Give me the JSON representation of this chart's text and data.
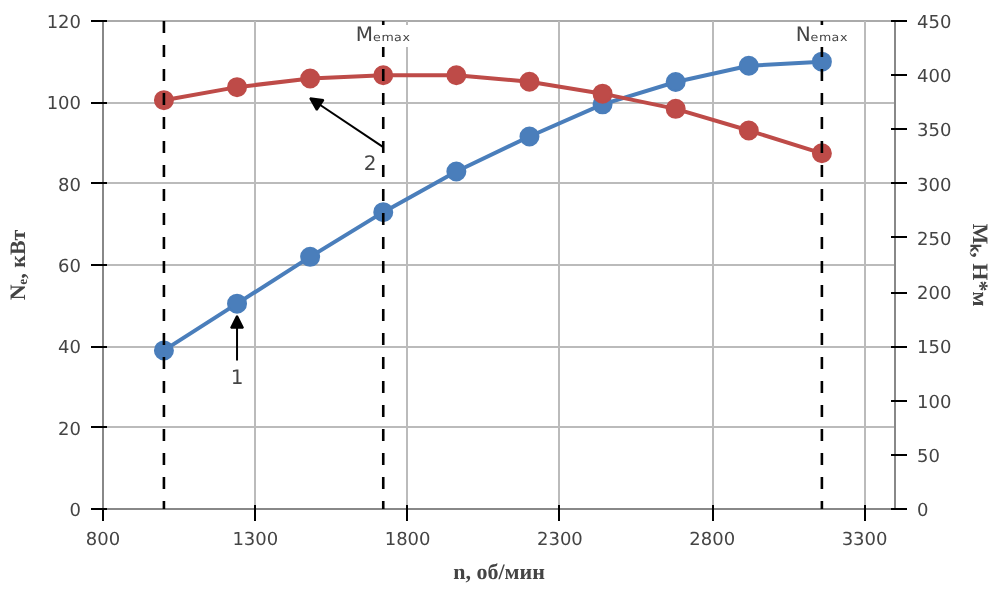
{
  "chart_data": {
    "type": "line",
    "xlabel": "n, об/мин",
    "ylabel": "Nₑ, кВт",
    "y2label": "Mₖ, Н*м",
    "x": [
      1000,
      1240,
      1480,
      1720,
      1960,
      2200,
      2440,
      2680,
      2920,
      3160
    ],
    "series": [
      {
        "color": "#4a7ebb",
        "values": [
          39,
          50.5,
          62,
          73,
          83,
          91.6,
          99.5,
          105,
          109,
          110
        ]
      },
      {
        "color": "#be4b48",
        "axis": "y2",
        "values": [
          377,
          389,
          397,
          400,
          400,
          394,
          383,
          369,
          349,
          328
        ]
      }
    ],
    "xlim": [
      800,
      3400
    ],
    "xticks": [
      800,
      1300,
      1800,
      2300,
      2800,
      3300
    ],
    "ylim": [
      0,
      120
    ],
    "yticks": [
      0,
      20,
      40,
      60,
      80,
      100,
      120
    ],
    "y2lim": [
      0,
      450
    ],
    "y2ticks": [
      0,
      50,
      100,
      150,
      200,
      250,
      300,
      350,
      400,
      450
    ],
    "ref_lines": [
      {
        "axis": "x",
        "value": 1000,
        "label": null,
        "color": "#000000",
        "line_style": "dashed"
      },
      {
        "axis": "x",
        "value": 1720,
        "label": "Mₑₘₐₓ",
        "color": "#000000",
        "line_style": "dashed"
      },
      {
        "axis": "x",
        "value": 3160,
        "label": "Nₑₘₐₓ",
        "color": "#000000",
        "line_style": "dashed"
      }
    ],
    "annotations": [
      {
        "text": "1",
        "x": 1240,
        "y": 50.5
      },
      {
        "text": "2",
        "x": 1480,
        "y": 104
      }
    ],
    "grid": true,
    "marker": "circle",
    "line_style": "solid"
  }
}
